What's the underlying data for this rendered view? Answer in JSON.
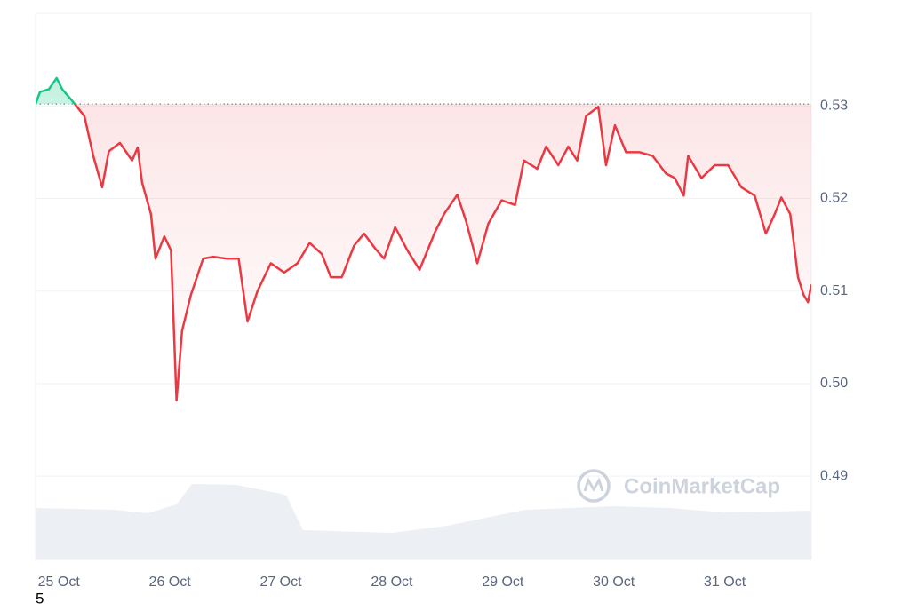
{
  "chart_data": {
    "type": "line",
    "x": [
      -0.21,
      -0.17,
      -0.09,
      -0.02,
      0.03,
      0.13,
      0.23,
      0.31,
      0.39,
      0.45,
      0.55,
      0.66,
      0.71,
      0.75,
      0.83,
      0.87,
      0.95,
      1.01,
      1.06,
      1.11,
      1.19,
      1.3,
      1.39,
      1.51,
      1.62,
      1.7,
      1.79,
      1.91,
      2.03,
      2.15,
      2.26,
      2.37,
      2.45,
      2.55,
      2.66,
      2.75,
      2.85,
      2.93,
      3.03,
      3.14,
      3.25,
      3.39,
      3.47,
      3.59,
      3.67,
      3.77,
      3.87,
      3.99,
      4.11,
      4.19,
      4.31,
      4.39,
      4.5,
      4.59,
      4.67,
      4.75,
      4.86,
      4.93,
      5.01,
      5.11,
      5.23,
      5.35,
      5.47,
      5.55,
      5.63,
      5.67,
      5.79,
      5.91,
      6.03,
      6.15,
      6.27,
      6.37,
      6.45,
      6.51,
      6.59,
      6.66,
      6.71,
      6.75,
      6.78
    ],
    "values": [
      0.5302,
      0.5315,
      0.5318,
      0.533,
      0.5318,
      0.5304,
      0.5289,
      0.5246,
      0.5212,
      0.5251,
      0.526,
      0.5241,
      0.5255,
      0.5217,
      0.5183,
      0.5135,
      0.5159,
      0.5144,
      0.4982,
      0.5057,
      0.5096,
      0.5135,
      0.5137,
      0.5135,
      0.5135,
      0.5067,
      0.51,
      0.513,
      0.512,
      0.513,
      0.5152,
      0.514,
      0.5115,
      0.5115,
      0.5149,
      0.5162,
      0.5146,
      0.5135,
      0.5169,
      0.5144,
      0.5123,
      0.5164,
      0.5183,
      0.5204,
      0.5175,
      0.513,
      0.5173,
      0.5198,
      0.5193,
      0.5241,
      0.5232,
      0.5256,
      0.5236,
      0.5256,
      0.5241,
      0.5289,
      0.5299,
      0.5236,
      0.5279,
      0.525,
      0.525,
      0.5246,
      0.5227,
      0.5222,
      0.5203,
      0.5246,
      0.5222,
      0.5236,
      0.5236,
      0.5212,
      0.5203,
      0.5162,
      0.5183,
      0.5201,
      0.5183,
      0.5115,
      0.5096,
      0.5088,
      0.5107
    ],
    "color": "#ea3943",
    "up_color": "#16c784",
    "baseline": 0.5302,
    "xlim": [
      -0.21,
      6.78
    ],
    "ylim": [
      0.481,
      0.54
    ],
    "xticks": [
      {
        "value": 0,
        "label": "25 Oct"
      },
      {
        "value": 1,
        "label": "26 Oct"
      },
      {
        "value": 2,
        "label": "27 Oct"
      },
      {
        "value": 3,
        "label": "28 Oct"
      },
      {
        "value": 4,
        "label": "29 Oct"
      },
      {
        "value": 5,
        "label": "30 Oct"
      },
      {
        "value": 6,
        "label": "31 Oct"
      }
    ],
    "yticks": [
      {
        "value": 0.49,
        "label": "0.49"
      },
      {
        "value": 0.5,
        "label": "0.50"
      },
      {
        "value": 0.51,
        "label": "0.51"
      },
      {
        "value": 0.52,
        "label": "0.52"
      },
      {
        "value": 0.53,
        "label": "0.53"
      }
    ],
    "grid": true,
    "volume": {
      "x": [
        -0.21,
        0.5,
        0.8,
        0.95,
        1.06,
        1.2,
        1.6,
        2.0,
        2.05,
        2.2,
        3.0,
        3.5,
        4.2,
        5.0,
        5.5,
        6.0,
        6.78
      ],
      "values": [
        58,
        56,
        52,
        58,
        62,
        85,
        84,
        74,
        72,
        33,
        30,
        38,
        56,
        60,
        58,
        53,
        55
      ],
      "color": "#eceff3"
    },
    "watermark": "CoinMarketCap",
    "footnote": "5"
  }
}
